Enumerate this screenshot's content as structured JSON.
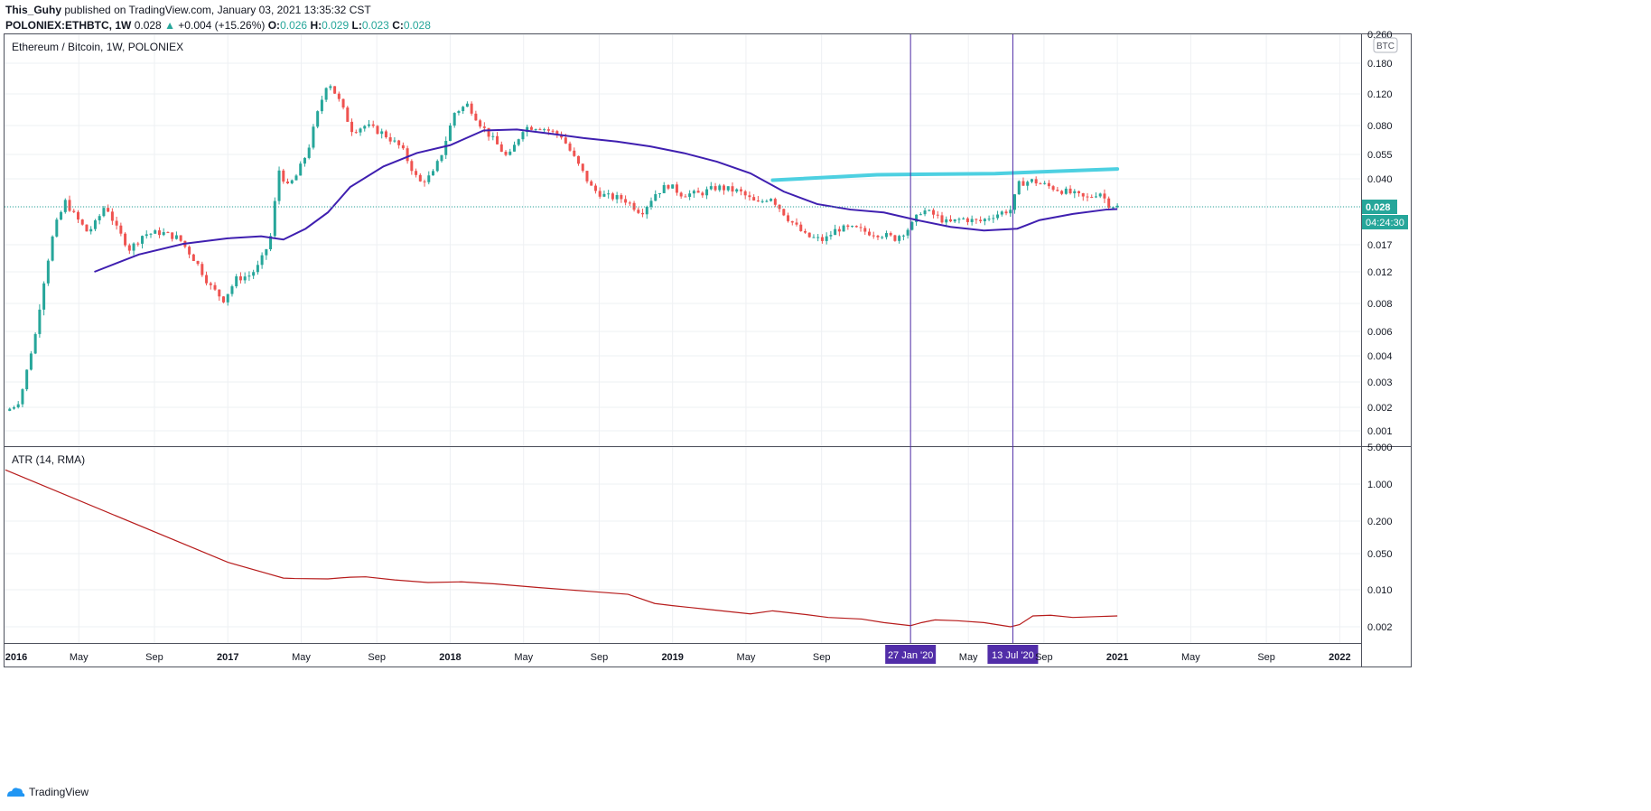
{
  "header": {
    "author": "This_Guhy",
    "published_text": "published on TradingView.com, January 03, 2021 13:35:32 CST",
    "symbol": "POLONIEX:ETHBTC, 1W",
    "last": "0.028",
    "change": "+0.004 (+15.26%)",
    "open_label": "O:",
    "open": "0.026",
    "high_label": "H:",
    "high": "0.029",
    "low_label": "L:",
    "low": "0.023",
    "close_label": "C:",
    "close": "0.028"
  },
  "footer": {
    "brand": "TradingView"
  },
  "colors": {
    "up": "#26a69a",
    "down": "#ef5350",
    "ma": "#3f1fb0",
    "trendline": "#4dd0e1",
    "atr": "#b71c1c",
    "marker_bg": "#512da8"
  },
  "chart_data": [
    {
      "type": "candlestick",
      "title": "Ethereum / Bitcoin, 1W, POLONIEX",
      "y_axis_unit": "BTC",
      "y_scale": "log",
      "yticks": [
        "0.001",
        "0.002",
        "0.003",
        "0.004",
        "0.006",
        "0.008",
        "0.012",
        "0.017",
        "0.028",
        "0.040",
        "0.055",
        "0.080",
        "0.120",
        "0.180",
        "0.260"
      ],
      "xticks": [
        "2016",
        "May",
        "Sep",
        "2017",
        "May",
        "Sep",
        "2018",
        "May",
        "Sep",
        "2019",
        "May",
        "Sep",
        "27 Jan '20",
        "May",
        "13 Jul '20",
        "Sep",
        "2021",
        "May",
        "Sep",
        "2022"
      ],
      "last_price_label": "0.028",
      "countdown_label": "04:24:30",
      "vertical_markers": [
        "27 Jan '20",
        "13 Jul '20"
      ],
      "price_path_anchors": [
        [
          2016.0,
          0.0018
        ],
        [
          2016.06,
          0.0022
        ],
        [
          2016.12,
          0.0045
        ],
        [
          2016.18,
          0.012
        ],
        [
          2016.22,
          0.021
        ],
        [
          2016.27,
          0.03
        ],
        [
          2016.31,
          0.025
        ],
        [
          2016.37,
          0.02
        ],
        [
          2016.41,
          0.023
        ],
        [
          2016.45,
          0.029
        ],
        [
          2016.5,
          0.021
        ],
        [
          2016.56,
          0.016
        ],
        [
          2016.62,
          0.0195
        ],
        [
          2016.7,
          0.02
        ],
        [
          2016.78,
          0.0185
        ],
        [
          2016.86,
          0.0135
        ],
        [
          2016.92,
          0.01
        ],
        [
          2016.98,
          0.0084
        ],
        [
          2017.04,
          0.011
        ],
        [
          2017.1,
          0.0115
        ],
        [
          2017.14,
          0.013
        ],
        [
          2017.19,
          0.018
        ],
        [
          2017.23,
          0.045
        ],
        [
          2017.27,
          0.036
        ],
        [
          2017.31,
          0.042
        ],
        [
          2017.36,
          0.058
        ],
        [
          2017.4,
          0.09
        ],
        [
          2017.45,
          0.145
        ],
        [
          2017.5,
          0.11
        ],
        [
          2017.56,
          0.075
        ],
        [
          2017.62,
          0.08
        ],
        [
          2017.7,
          0.072
        ],
        [
          2017.78,
          0.06
        ],
        [
          2017.86,
          0.038
        ],
        [
          2017.92,
          0.042
        ],
        [
          2017.96,
          0.055
        ],
        [
          2018.02,
          0.095
        ],
        [
          2018.08,
          0.105
        ],
        [
          2018.14,
          0.08
        ],
        [
          2018.2,
          0.065
        ],
        [
          2018.26,
          0.052
        ],
        [
          2018.33,
          0.078
        ],
        [
          2018.4,
          0.079
        ],
        [
          2018.5,
          0.07
        ],
        [
          2018.58,
          0.047
        ],
        [
          2018.64,
          0.035
        ],
        [
          2018.7,
          0.032
        ],
        [
          2018.78,
          0.031
        ],
        [
          2018.86,
          0.026
        ],
        [
          2018.92,
          0.033
        ],
        [
          2018.98,
          0.037
        ],
        [
          2019.04,
          0.033
        ],
        [
          2019.12,
          0.033
        ],
        [
          2019.2,
          0.036
        ],
        [
          2019.3,
          0.034
        ],
        [
          2019.38,
          0.029
        ],
        [
          2019.44,
          0.032
        ],
        [
          2019.52,
          0.024
        ],
        [
          2019.6,
          0.019
        ],
        [
          2019.68,
          0.018
        ],
        [
          2019.74,
          0.021
        ],
        [
          2019.82,
          0.021
        ],
        [
          2019.88,
          0.02
        ],
        [
          2019.94,
          0.0195
        ],
        [
          2020.0,
          0.0185
        ],
        [
          2020.07,
          0.0215
        ],
        [
          2020.12,
          0.027
        ],
        [
          2020.18,
          0.025
        ],
        [
          2020.24,
          0.0225
        ],
        [
          2020.3,
          0.024
        ],
        [
          2020.38,
          0.023
        ],
        [
          2020.44,
          0.025
        ],
        [
          2020.52,
          0.027
        ],
        [
          2020.56,
          0.038
        ],
        [
          2020.62,
          0.039
        ],
        [
          2020.7,
          0.036
        ],
        [
          2020.8,
          0.033
        ],
        [
          2020.86,
          0.031
        ],
        [
          2020.92,
          0.034
        ],
        [
          2020.96,
          0.029
        ],
        [
          2021.0,
          0.028
        ]
      ],
      "moving_average": [
        [
          2016.4,
          0.012
        ],
        [
          2016.6,
          0.015
        ],
        [
          2016.8,
          0.0172
        ],
        [
          2017.0,
          0.0185
        ],
        [
          2017.15,
          0.019
        ],
        [
          2017.25,
          0.0182
        ],
        [
          2017.35,
          0.021
        ],
        [
          2017.45,
          0.026
        ],
        [
          2017.55,
          0.036
        ],
        [
          2017.7,
          0.047
        ],
        [
          2017.85,
          0.056
        ],
        [
          2018.0,
          0.062
        ],
        [
          2018.15,
          0.075
        ],
        [
          2018.3,
          0.076
        ],
        [
          2018.45,
          0.072
        ],
        [
          2018.6,
          0.068
        ],
        [
          2018.75,
          0.065
        ],
        [
          2018.9,
          0.061
        ],
        [
          2019.05,
          0.056
        ],
        [
          2019.2,
          0.05
        ],
        [
          2019.35,
          0.043
        ],
        [
          2019.5,
          0.034
        ],
        [
          2019.65,
          0.029
        ],
        [
          2019.8,
          0.027
        ],
        [
          2019.95,
          0.026
        ],
        [
          2020.1,
          0.0235
        ],
        [
          2020.25,
          0.0215
        ],
        [
          2020.4,
          0.0205
        ],
        [
          2020.55,
          0.021
        ],
        [
          2020.65,
          0.0235
        ],
        [
          2020.8,
          0.0255
        ],
        [
          2020.95,
          0.027
        ],
        [
          2021.0,
          0.0272
        ]
      ],
      "trendline": [
        [
          2019.45,
          0.0393
        ],
        [
          2019.92,
          0.0422
        ],
        [
          2020.45,
          0.0428
        ],
        [
          2021.0,
          0.0455
        ]
      ]
    },
    {
      "type": "line",
      "title": "ATR (14, RMA)",
      "y_scale": "log",
      "yticks": [
        "0.002",
        "0.010",
        "0.050",
        "0.200",
        "1.000",
        "5.000"
      ],
      "series": [
        {
          "values": [
            [
              2016.0,
              1.85
            ],
            [
              2017.0,
              0.034
            ],
            [
              2017.25,
              0.0168
            ],
            [
              2017.3,
              0.0165
            ],
            [
              2017.45,
              0.0162
            ],
            [
              2017.55,
              0.0175
            ],
            [
              2017.62,
              0.0178
            ],
            [
              2017.75,
              0.0155
            ],
            [
              2017.9,
              0.0138
            ],
            [
              2018.05,
              0.0142
            ],
            [
              2018.2,
              0.013
            ],
            [
              2018.4,
              0.011
            ],
            [
              2018.6,
              0.0095
            ],
            [
              2018.8,
              0.0082
            ],
            [
              2018.92,
              0.0055
            ],
            [
              2019.0,
              0.005
            ],
            [
              2019.15,
              0.0043
            ],
            [
              2019.35,
              0.0035
            ],
            [
              2019.45,
              0.004
            ],
            [
              2019.6,
              0.0034
            ],
            [
              2019.7,
              0.003
            ],
            [
              2019.85,
              0.0028
            ],
            [
              2019.95,
              0.0024
            ],
            [
              2020.07,
              0.0021
            ],
            [
              2020.12,
              0.0024
            ],
            [
              2020.18,
              0.0027
            ],
            [
              2020.28,
              0.0026
            ],
            [
              2020.4,
              0.0024
            ],
            [
              2020.52,
              0.002
            ],
            [
              2020.56,
              0.0022
            ],
            [
              2020.62,
              0.0032
            ],
            [
              2020.7,
              0.0033
            ],
            [
              2020.8,
              0.003
            ],
            [
              2020.9,
              0.0031
            ],
            [
              2021.0,
              0.0032
            ]
          ]
        }
      ]
    }
  ]
}
